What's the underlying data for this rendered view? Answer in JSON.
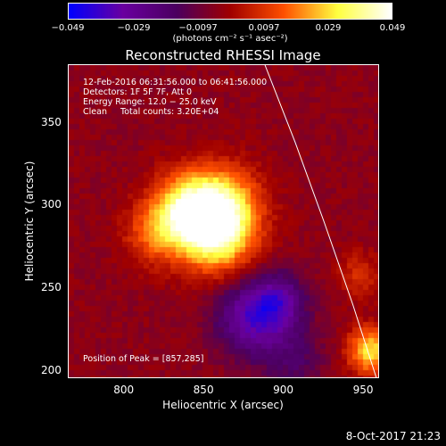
{
  "colorbar": {
    "ticks": [
      "−0.049",
      "−0.029",
      "−0.0097",
      "0.0097",
      "0.029",
      "0.049"
    ],
    "units": "(photons cm⁻² s⁻¹ asec⁻²)",
    "colors": [
      "#0000ff",
      "#6a00a0",
      "#4b0060",
      "#a00000",
      "#ff5000",
      "#ffff40",
      "#ffffff"
    ]
  },
  "title": "Reconstructed RHESSI Image",
  "annotations": {
    "time": "12-Feb-2016 06:31:56.000 to 06:41:56.000",
    "detectors": "Detectors: 1F 5F 7F, Att 0",
    "energy": "Energy Range: 12.0 − 25.0 keV",
    "clean": "Clean     Total counts: 3.20E+04",
    "peak": "Position of Peak = [857,285]"
  },
  "timestamp": "8-Oct-2017 21:23",
  "chart_data": {
    "type": "heatmap",
    "title": "Reconstructed RHESSI Image",
    "xlabel": "Heliocentric X (arcsec)",
    "ylabel": "Heliocentric Y (arcsec)",
    "xlim": [
      765,
      960
    ],
    "ylim": [
      195,
      385
    ],
    "xticks": [
      "800",
      "850",
      "900",
      "950"
    ],
    "xtick_values": [
      800,
      850,
      900,
      950
    ],
    "yticks": [
      "200",
      "250",
      "300",
      "350"
    ],
    "ytick_values": [
      200,
      250,
      300,
      350
    ],
    "zlim": [
      -0.049,
      0.049
    ],
    "peak": [
      857,
      285
    ],
    "sources": [
      {
        "x": 857,
        "y": 285,
        "peak": 0.049,
        "sigma": 17
      },
      {
        "x": 838,
        "y": 298,
        "peak": 0.034,
        "sigma": 15
      },
      {
        "x": 862,
        "y": 304,
        "peak": 0.022,
        "sigma": 16
      },
      {
        "x": 818,
        "y": 283,
        "peak": 0.018,
        "sigma": 13
      },
      {
        "x": 954,
        "y": 212,
        "peak": 0.035,
        "sigma": 10
      },
      {
        "x": 947,
        "y": 258,
        "peak": 0.012,
        "sigma": 10
      },
      {
        "x": 880,
        "y": 232,
        "peak": -0.03,
        "sigma": 16
      },
      {
        "x": 897,
        "y": 242,
        "peak": -0.022,
        "sigma": 12
      },
      {
        "x": 906,
        "y": 205,
        "peak": -0.012,
        "sigma": 14
      }
    ],
    "limb": {
      "x": [
        888,
        907,
        925,
        943,
        958
      ],
      "y": [
        385,
        338,
        290,
        240,
        195
      ]
    }
  }
}
